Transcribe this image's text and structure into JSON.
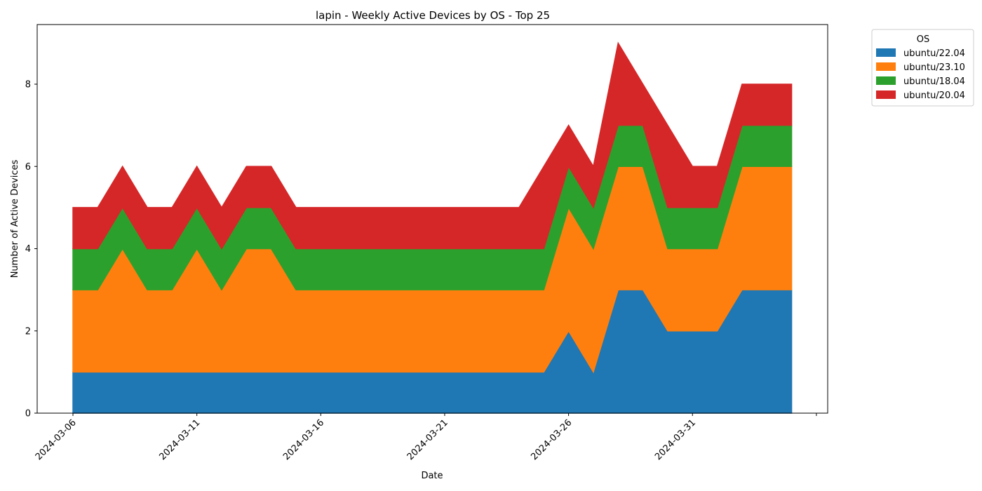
{
  "chart_data": {
    "type": "area",
    "stacked": true,
    "title": "lapin - Weekly Active Devices by OS - Top 25",
    "xlabel": "Date",
    "ylabel": "Number of Active Devices",
    "x": [
      "2024-03-06",
      "2024-03-07",
      "2024-03-08",
      "2024-03-09",
      "2024-03-10",
      "2024-03-11",
      "2024-03-12",
      "2024-03-13",
      "2024-03-14",
      "2024-03-15",
      "2024-03-16",
      "2024-03-17",
      "2024-03-18",
      "2024-03-19",
      "2024-03-20",
      "2024-03-21",
      "2024-03-22",
      "2024-03-23",
      "2024-03-24",
      "2024-03-25",
      "2024-03-26",
      "2024-03-27",
      "2024-03-28",
      "2024-03-29",
      "2024-03-30",
      "2024-03-31",
      "2024-04-01",
      "2024-04-02",
      "2024-04-03",
      "2024-04-04"
    ],
    "x_ticks": [
      "2024-03-06",
      "2024-03-11",
      "2024-03-16",
      "2024-03-21",
      "2024-03-26",
      "2024-03-31",
      ""
    ],
    "ylim": [
      0,
      9.45
    ],
    "y_ticks": [
      0,
      2,
      4,
      6,
      8
    ],
    "legend": {
      "title": "OS",
      "placement": "outside-top-right"
    },
    "grid": false,
    "series": [
      {
        "name": "ubuntu/22.04",
        "color": "#1f77b4",
        "values": [
          1,
          1,
          1,
          1,
          1,
          1,
          1,
          1,
          1,
          1,
          1,
          1,
          1,
          1,
          1,
          1,
          1,
          1,
          1,
          1,
          2,
          1,
          3,
          3,
          2,
          2,
          2,
          3,
          3,
          3
        ]
      },
      {
        "name": "ubuntu/23.10",
        "color": "#ff7f0e",
        "values": [
          2,
          2,
          3,
          2,
          2,
          3,
          2,
          3,
          3,
          2,
          2,
          2,
          2,
          2,
          2,
          2,
          2,
          2,
          2,
          2,
          3,
          3,
          3,
          3,
          2,
          2,
          2,
          3,
          3,
          3
        ]
      },
      {
        "name": "ubuntu/18.04",
        "color": "#2ca02c",
        "values": [
          1,
          1,
          1,
          1,
          1,
          1,
          1,
          1,
          1,
          1,
          1,
          1,
          1,
          1,
          1,
          1,
          1,
          1,
          1,
          1,
          1,
          1,
          1,
          1,
          1,
          1,
          1,
          1,
          1,
          1
        ]
      },
      {
        "name": "ubuntu/20.04",
        "color": "#d62728",
        "values": [
          1,
          1,
          1,
          1,
          1,
          1,
          1,
          1,
          1,
          1,
          1,
          1,
          1,
          1,
          1,
          1,
          1,
          1,
          1,
          2,
          1,
          1,
          2,
          1,
          2,
          1,
          1,
          1,
          1,
          1
        ]
      }
    ]
  }
}
